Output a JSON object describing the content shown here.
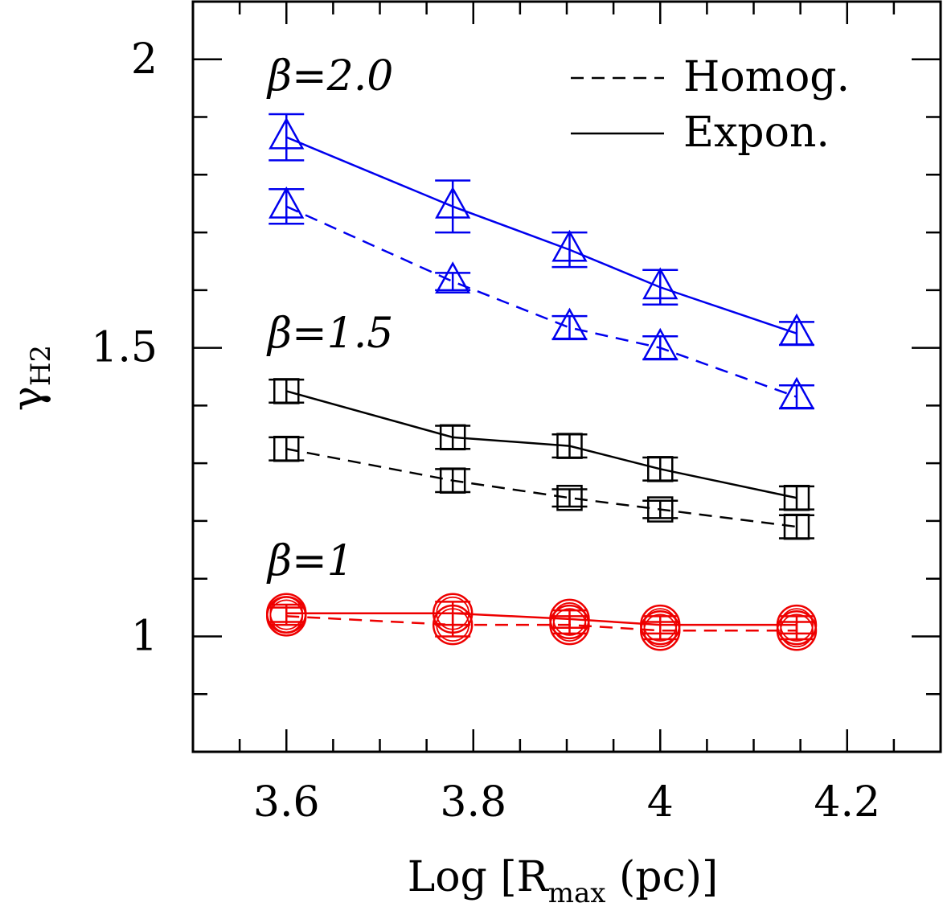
{
  "chart_data": {
    "type": "line",
    "xlabel": "Log [R",
    "xlabel_sub": "max",
    "xlabel_tail": " (pc)]",
    "ylabel": "γ",
    "ylabel_sub": "H2",
    "xlim": [
      3.5,
      4.3
    ],
    "ylim": [
      0.8,
      2.1
    ],
    "x_ticks": [
      3.6,
      3.8,
      4.0,
      4.2
    ],
    "x_tick_labels": [
      "3.6",
      "3.8",
      "4",
      "4.2"
    ],
    "y_ticks": [
      1.0,
      1.5,
      2.0
    ],
    "y_tick_labels": [
      "1",
      "1.5",
      "2"
    ],
    "x": [
      3.6,
      3.778,
      3.903,
      4.0,
      4.146
    ],
    "legend": {
      "position": "top-right",
      "entries": [
        {
          "label": "Homog.",
          "linestyle": "dashed"
        },
        {
          "label": "Expon.",
          "linestyle": "solid"
        }
      ]
    },
    "annotations": [
      {
        "text": "β=2.0",
        "near_series": "beta2"
      },
      {
        "text": "β=1.5",
        "near_series": "beta15"
      },
      {
        "text": "β=1",
        "near_series": "beta1"
      }
    ],
    "series": [
      {
        "group": "beta2",
        "linestyle": "solid",
        "marker": "triangle",
        "color": "#0000ee",
        "values": [
          1.865,
          1.745,
          1.67,
          1.605,
          1.525
        ],
        "errors": [
          0.04,
          0.045,
          0.03,
          0.03,
          0.02
        ]
      },
      {
        "group": "beta2",
        "linestyle": "dashed",
        "marker": "triangle",
        "color": "#0000ee",
        "values": [
          1.745,
          1.615,
          1.535,
          1.5,
          1.415
        ],
        "errors": [
          0.03,
          0.015,
          0.02,
          0.02,
          0.02
        ]
      },
      {
        "group": "beta15",
        "linestyle": "solid",
        "marker": "square",
        "color": "#000000",
        "values": [
          1.425,
          1.345,
          1.33,
          1.29,
          1.24
        ],
        "errors": [
          0.02,
          0.02,
          0.02,
          0.02,
          0.02
        ]
      },
      {
        "group": "beta15",
        "linestyle": "dashed",
        "marker": "square",
        "color": "#000000",
        "values": [
          1.325,
          1.27,
          1.24,
          1.22,
          1.19
        ],
        "errors": [
          0.02,
          0.02,
          0.015,
          0.015,
          0.02
        ]
      },
      {
        "group": "beta1",
        "linestyle": "solid",
        "marker": "circle",
        "color": "#ee0000",
        "values": [
          1.04,
          1.04,
          1.03,
          1.02,
          1.02
        ],
        "errors": [
          0.015,
          0.02,
          0.015,
          0.015,
          0.015
        ]
      },
      {
        "group": "beta1",
        "linestyle": "dashed",
        "marker": "circle",
        "color": "#ee0000",
        "values": [
          1.035,
          1.02,
          1.02,
          1.01,
          1.01
        ],
        "errors": [
          0.015,
          0.02,
          0.015,
          0.015,
          0.015
        ]
      }
    ],
    "grid": false
  }
}
